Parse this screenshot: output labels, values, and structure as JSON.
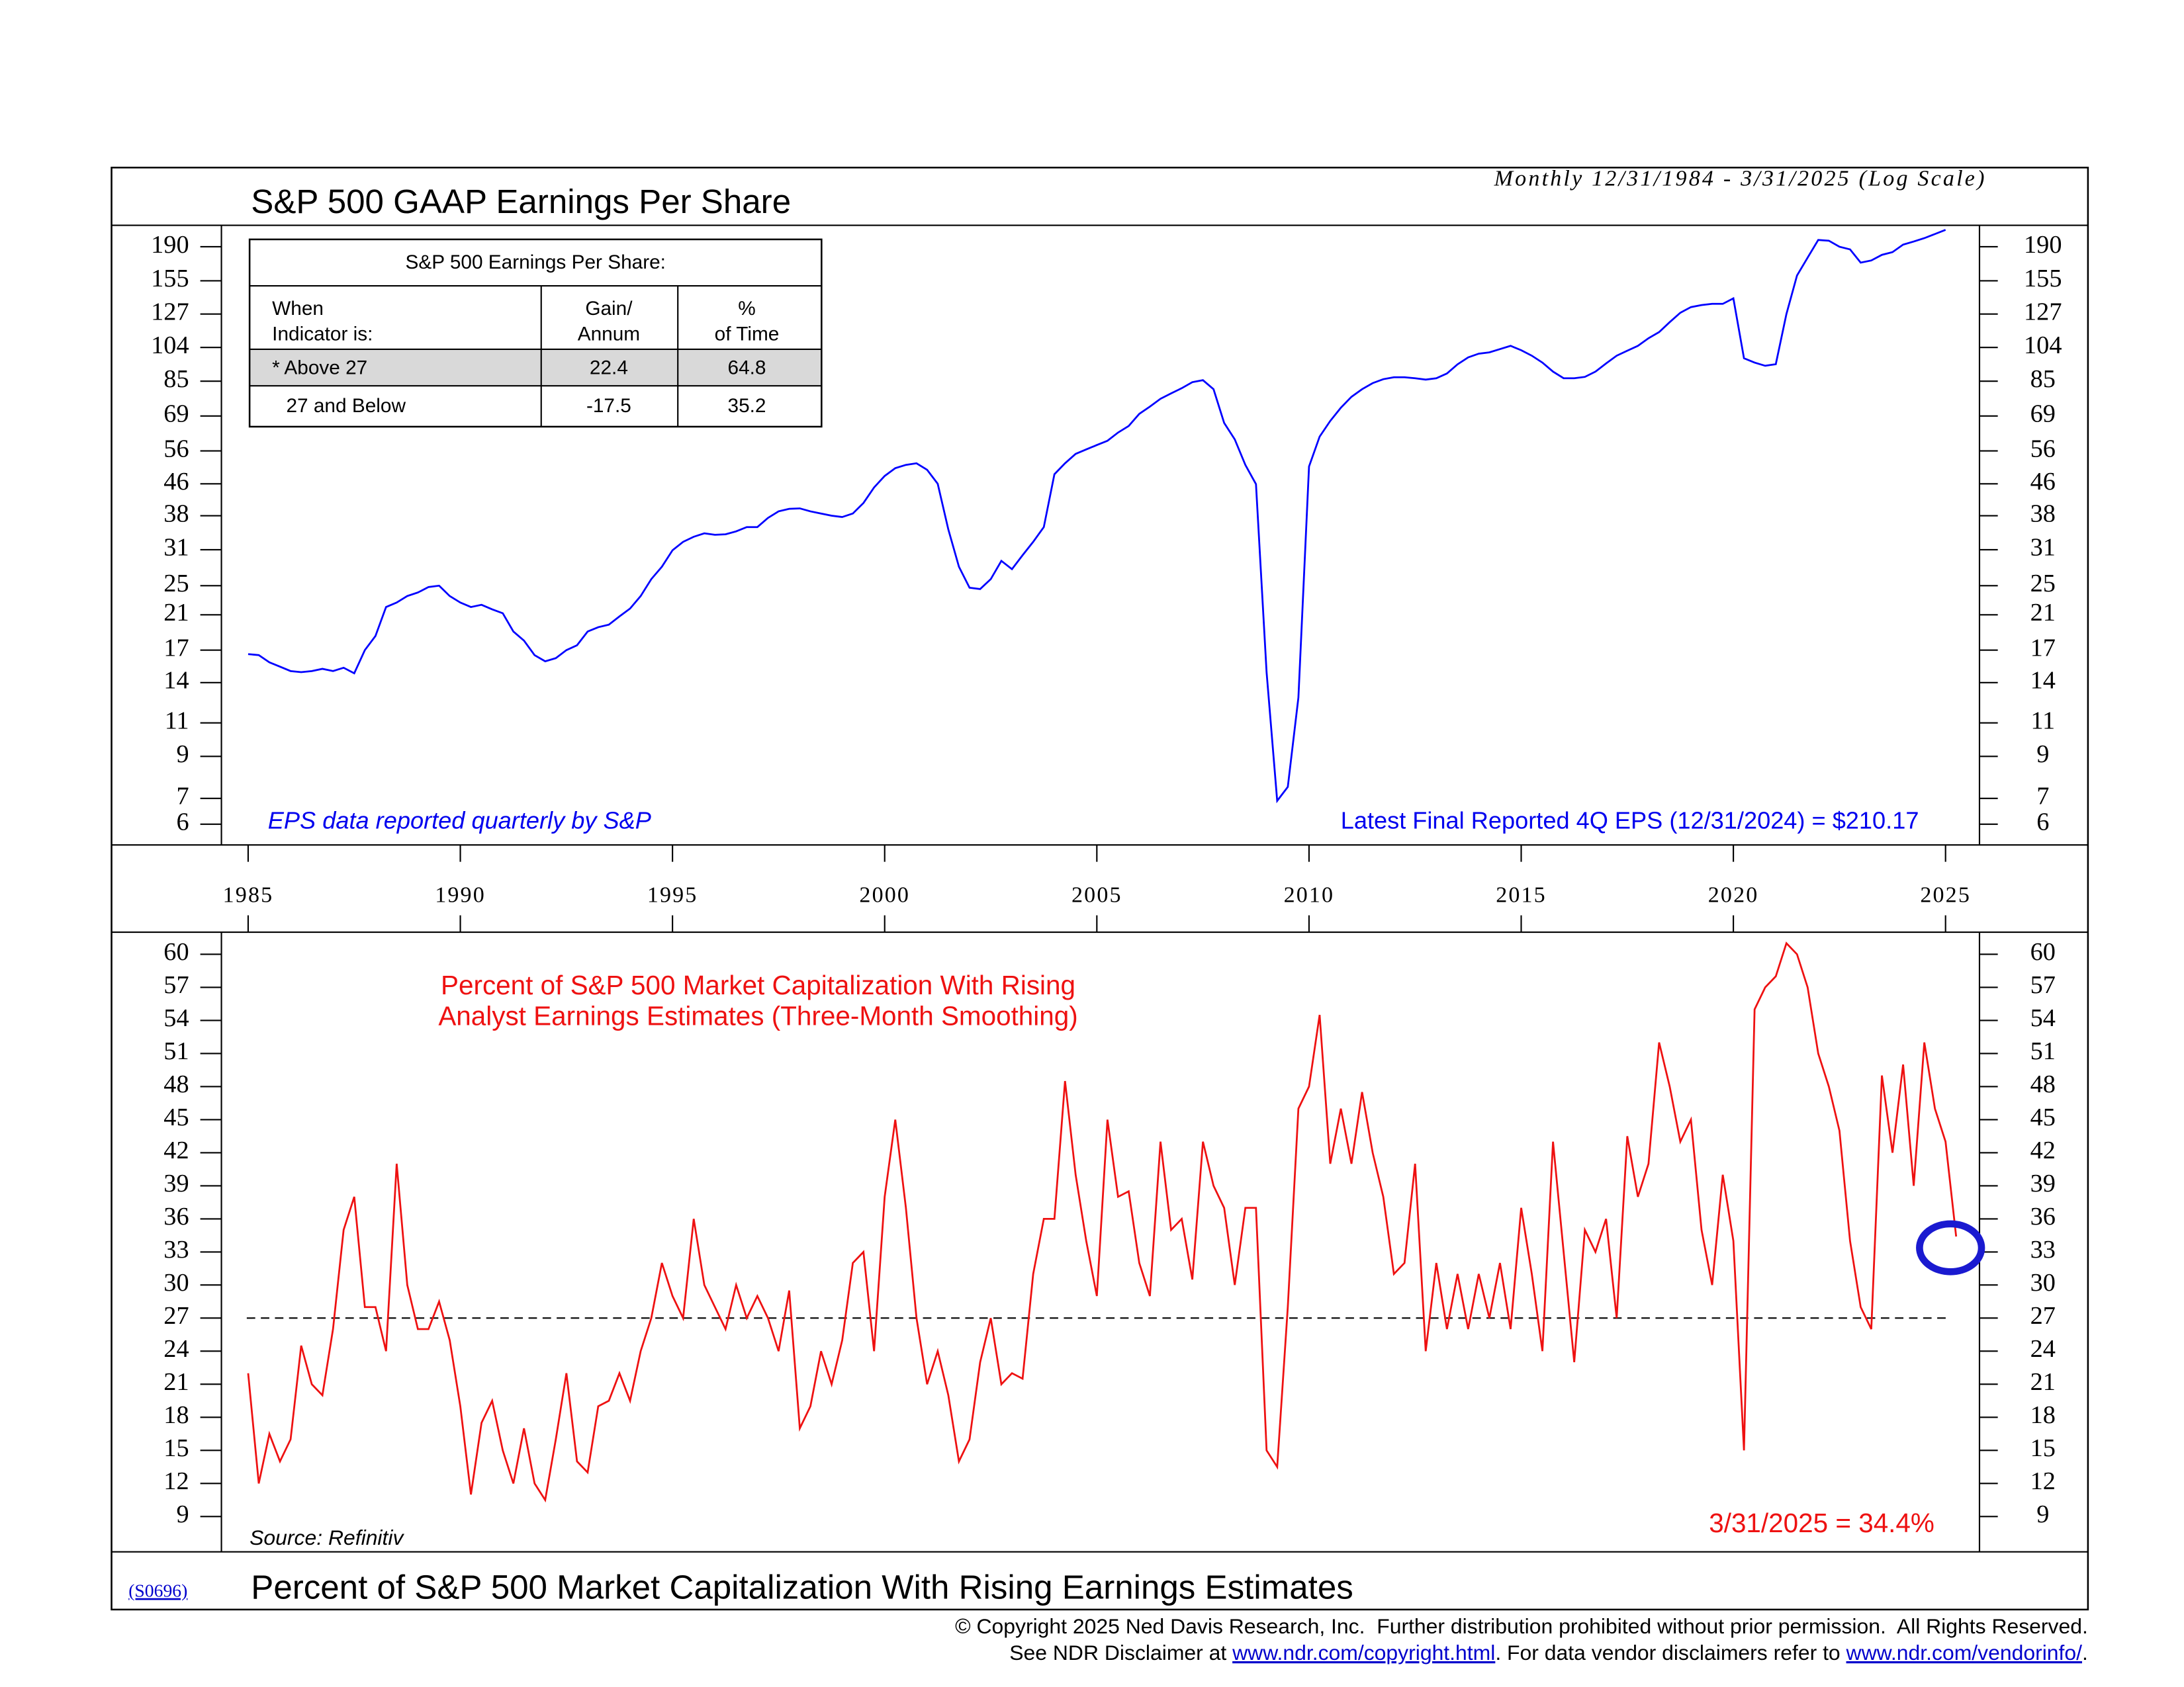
{
  "chart_data": [
    {
      "type": "line",
      "title": "S&P 500 GAAP Earnings Per Share",
      "subtitle": "Monthly 12/31/1984 - 3/31/2025 (Log Scale)",
      "log_scale": true,
      "color": "#0000ff",
      "xlim": [
        1984.37,
        2025.8
      ],
      "xticks": [
        1985,
        1990,
        1995,
        2000,
        2005,
        2010,
        2015,
        2020,
        2025
      ],
      "ylim": [
        5.3,
        216
      ],
      "yticks": [
        190,
        155,
        127,
        104,
        85,
        69,
        56,
        46,
        38,
        31,
        25,
        21,
        17,
        14,
        11,
        9,
        7,
        6
      ],
      "x": [
        1985,
        1985.25,
        1985.5,
        1985.75,
        1986,
        1986.25,
        1986.5,
        1986.75,
        1987,
        1987.25,
        1987.5,
        1987.75,
        1988,
        1988.25,
        1988.5,
        1988.75,
        1989,
        1989.25,
        1989.5,
        1989.75,
        1990,
        1990.25,
        1990.5,
        1990.75,
        1991,
        1991.25,
        1991.5,
        1991.75,
        1992,
        1992.25,
        1992.5,
        1992.75,
        1993,
        1993.25,
        1993.5,
        1993.75,
        1994,
        1994.25,
        1994.5,
        1994.75,
        1995,
        1995.25,
        1995.5,
        1995.75,
        1996,
        1996.25,
        1996.5,
        1996.75,
        1997,
        1997.25,
        1997.5,
        1997.75,
        1998,
        1998.25,
        1998.5,
        1998.75,
        1999,
        1999.25,
        1999.5,
        1999.75,
        2000,
        2000.25,
        2000.5,
        2000.75,
        2001,
        2001.25,
        2001.5,
        2001.75,
        2002,
        2002.25,
        2002.5,
        2002.75,
        2003,
        2003.25,
        2003.5,
        2003.75,
        2004,
        2004.25,
        2004.5,
        2004.75,
        2005,
        2005.25,
        2005.5,
        2005.75,
        2006,
        2006.25,
        2006.5,
        2006.75,
        2007,
        2007.25,
        2007.5,
        2007.75,
        2008,
        2008.25,
        2008.5,
        2008.75,
        2009,
        2009.25,
        2009.5,
        2009.75,
        2010,
        2010.25,
        2010.5,
        2010.75,
        2011,
        2011.25,
        2011.5,
        2011.75,
        2012,
        2012.25,
        2012.5,
        2012.75,
        2013,
        2013.25,
        2013.5,
        2013.75,
        2014,
        2014.25,
        2014.5,
        2014.75,
        2015,
        2015.25,
        2015.5,
        2015.75,
        2016,
        2016.25,
        2016.5,
        2016.75,
        2017,
        2017.25,
        2017.5,
        2017.75,
        2018,
        2018.25,
        2018.5,
        2018.75,
        2019,
        2019.25,
        2019.5,
        2019.75,
        2020,
        2020.25,
        2020.5,
        2020.75,
        2021,
        2021.25,
        2021.5,
        2021.75,
        2022,
        2022.25,
        2022.5,
        2022.75,
        2023,
        2023.25,
        2023.5,
        2023.75,
        2024,
        2024.25,
        2024.5,
        2024.75,
        2025
      ],
      "values": [
        16.6,
        16.5,
        15.8,
        15.4,
        15.0,
        14.9,
        15.0,
        15.2,
        15.0,
        15.3,
        14.8,
        17.0,
        18.5,
        22.0,
        22.6,
        23.5,
        24.0,
        24.8,
        25.0,
        23.5,
        22.6,
        22.0,
        22.3,
        21.7,
        21.2,
        19.0,
        18.0,
        16.5,
        15.9,
        16.2,
        17.0,
        17.5,
        19.0,
        19.5,
        19.8,
        20.8,
        21.8,
        23.5,
        26.0,
        28.0,
        30.9,
        32.5,
        33.5,
        34.2,
        33.9,
        34.0,
        34.6,
        35.5,
        35.5,
        37.5,
        39.0,
        39.6,
        39.7,
        39.0,
        38.5,
        38.0,
        37.7,
        38.5,
        41.0,
        45.0,
        48.2,
        50.5,
        51.5,
        52.0,
        50.0,
        46.0,
        35.0,
        28.0,
        24.7,
        24.5,
        26.0,
        29.0,
        27.6,
        30.0,
        32.5,
        35.5,
        48.7,
        52.0,
        55.0,
        56.5,
        58.0,
        59.5,
        62.5,
        65.0,
        69.9,
        73.0,
        76.5,
        79.0,
        81.5,
        84.5,
        85.5,
        81.0,
        66.2,
        60.0,
        51.5,
        45.9,
        14.9,
        6.9,
        7.5,
        12.8,
        51.0,
        61,
        67,
        72.5,
        77.4,
        81,
        84,
        86,
        87,
        87,
        86.5,
        85.8,
        86.5,
        89,
        94,
        98,
        100.2,
        101,
        103,
        105,
        102.3,
        99,
        95,
        90,
        86.5,
        86.5,
        87.2,
        90,
        94.5,
        99,
        102,
        105,
        109.9,
        114,
        121,
        128,
        132.4,
        134,
        135,
        135,
        139.5,
        97.5,
        95,
        93.2,
        94.1,
        127,
        160,
        178,
        197.9,
        197,
        190,
        187,
        172.8,
        175,
        181,
        184,
        192.4,
        196,
        200,
        205,
        210.2
      ],
      "table": {
        "title": "S&P 500 Earnings Per Share:",
        "header": [
          [
            "When",
            "Indicator is:"
          ],
          [
            "Gain/",
            "Annum"
          ],
          [
            "%",
            "of Time"
          ]
        ],
        "rows": [
          [
            "* Above 27",
            22.4,
            64.8
          ],
          [
            "27 and Below",
            -17.5,
            35.2
          ]
        ]
      },
      "annotations": [
        "EPS data reported quarterly by S&P",
        "Latest Final Reported 4Q EPS (12/31/2024) = $210.17"
      ]
    },
    {
      "type": "line",
      "title": "Percent of S&P 500 Market Capitalization With Rising Earnings Estimates",
      "color": "#ee1111",
      "xlim": [
        1984.37,
        2025.8
      ],
      "ylim": [
        5.8,
        62
      ],
      "yticks": [
        60,
        57,
        54,
        51,
        48,
        45,
        42,
        39,
        36,
        33,
        30,
        27,
        24,
        21,
        18,
        15,
        12,
        9
      ],
      "threshold": 27,
      "x": [
        1985,
        1985.25,
        1985.5,
        1985.75,
        1986,
        1986.25,
        1986.5,
        1986.75,
        1987,
        1987.25,
        1987.5,
        1987.75,
        1988,
        1988.25,
        1988.5,
        1988.75,
        1989,
        1989.25,
        1989.5,
        1989.75,
        1990,
        1990.25,
        1990.5,
        1990.75,
        1991,
        1991.25,
        1991.5,
        1991.75,
        1992,
        1992.25,
        1992.5,
        1992.75,
        1993,
        1993.25,
        1993.5,
        1993.75,
        1994,
        1994.25,
        1994.5,
        1994.75,
        1995,
        1995.25,
        1995.5,
        1995.75,
        1996,
        1996.25,
        1996.5,
        1996.75,
        1997,
        1997.25,
        1997.5,
        1997.75,
        1998,
        1998.25,
        1998.5,
        1998.75,
        1999,
        1999.25,
        1999.5,
        1999.75,
        2000,
        2000.25,
        2000.5,
        2000.75,
        2001,
        2001.25,
        2001.5,
        2001.75,
        2002,
        2002.25,
        2002.5,
        2002.75,
        2003,
        2003.25,
        2003.5,
        2003.75,
        2004,
        2004.25,
        2004.5,
        2004.75,
        2005,
        2005.25,
        2005.5,
        2005.75,
        2006,
        2006.25,
        2006.5,
        2006.75,
        2007,
        2007.25,
        2007.5,
        2007.75,
        2008,
        2008.25,
        2008.5,
        2008.75,
        2009,
        2009.25,
        2009.5,
        2009.75,
        2010,
        2010.25,
        2010.5,
        2010.75,
        2011,
        2011.25,
        2011.5,
        2011.75,
        2012,
        2012.25,
        2012.5,
        2012.75,
        2013,
        2013.25,
        2013.5,
        2013.75,
        2014,
        2014.25,
        2014.5,
        2014.75,
        2015,
        2015.25,
        2015.5,
        2015.75,
        2016,
        2016.25,
        2016.5,
        2016.75,
        2017,
        2017.25,
        2017.5,
        2017.75,
        2018,
        2018.25,
        2018.5,
        2018.75,
        2019,
        2019.25,
        2019.5,
        2019.75,
        2020,
        2020.25,
        2020.5,
        2020.75,
        2021,
        2021.25,
        2021.5,
        2021.75,
        2022,
        2022.25,
        2022.5,
        2022.75,
        2023,
        2023.25,
        2023.5,
        2023.75,
        2024,
        2024.25,
        2024.5,
        2024.75,
        2025,
        2025.25
      ],
      "values": [
        22,
        12,
        16.5,
        14,
        16,
        24.5,
        21,
        20,
        26,
        35,
        38,
        28,
        28,
        24,
        41,
        30,
        26,
        26,
        28.5,
        25,
        19,
        11,
        17.5,
        19.5,
        15,
        12,
        17,
        12,
        10.5,
        16,
        22,
        14,
        13,
        19,
        19.5,
        22,
        19.5,
        24,
        27,
        32,
        29,
        27,
        36,
        30,
        28,
        26,
        30,
        27,
        29,
        27,
        24,
        29.5,
        17,
        19,
        24,
        21,
        25,
        32,
        33,
        24,
        38,
        45,
        37,
        27,
        21,
        24,
        20,
        14,
        16,
        23,
        27,
        21,
        22,
        21.5,
        31,
        36,
        36,
        48.5,
        40,
        34,
        29,
        45,
        38,
        38.5,
        32,
        29,
        43,
        35,
        36,
        30.5,
        43,
        39,
        37,
        30,
        37,
        37,
        15,
        13.5,
        28,
        46,
        48,
        54.5,
        41,
        46,
        41,
        47.5,
        42,
        38,
        31,
        32,
        41,
        24,
        32,
        26,
        31,
        26,
        31,
        27,
        32,
        26,
        37,
        31,
        24,
        43,
        33,
        23,
        35,
        33,
        36,
        27,
        43.5,
        38,
        41,
        52,
        48,
        43,
        45,
        35,
        30,
        40,
        34,
        15,
        55,
        57,
        58,
        61,
        60,
        57,
        51,
        48,
        44,
        34,
        28,
        26,
        49,
        42,
        50,
        39,
        52,
        46,
        43,
        34.4
      ],
      "annotations": [
        "Percent of S&P 500 Market Capitalization With Rising",
        "Analyst Earnings Estimates (Three-Month Smoothing)",
        "3/31/2025 = 34.4%",
        "Source: Refinitiv"
      ]
    }
  ],
  "footer": {
    "code": "(S0696)",
    "copyright": "© Copyright 2025 Ned Davis Research, Inc.  Further distribution prohibited without prior permission.  All Rights Reserved.",
    "disclaimer": [
      "See NDR Disclaimer at ",
      "www.ndr.com/copyright.html",
      ". For data vendor disclaimers refer to ",
      "www.ndr.com/vendorinfo/",
      "."
    ]
  }
}
